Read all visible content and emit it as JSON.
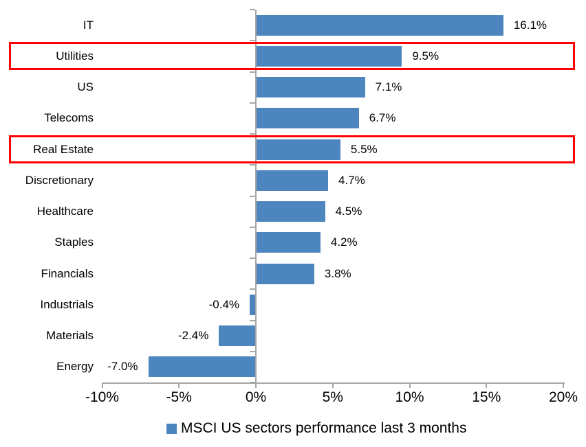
{
  "chart_data": {
    "type": "bar",
    "orientation": "horizontal",
    "title": "",
    "xlabel": "",
    "ylabel": "",
    "categories": [
      "IT",
      "Utilities",
      "US",
      "Telecoms",
      "Real Estate",
      "Discretionary",
      "Healthcare",
      "Staples",
      "Financials",
      "Industrials",
      "Materials",
      "Energy"
    ],
    "values": [
      16.1,
      9.5,
      7.1,
      6.7,
      5.5,
      4.7,
      4.5,
      4.2,
      3.8,
      -0.4,
      -2.4,
      -7.0
    ],
    "value_labels": [
      "16.1%",
      "9.5%",
      "7.1%",
      "6.7%",
      "5.5%",
      "4.7%",
      "4.5%",
      "4.2%",
      "3.8%",
      "-0.4%",
      "-2.4%",
      "-7.0%"
    ],
    "x_axis": {
      "min": -10,
      "max": 20,
      "unit": "%",
      "tick_values": [
        -10,
        -5,
        0,
        5,
        10,
        15,
        20
      ],
      "tick_labels": [
        "-10%",
        "-5%",
        "0%",
        "5%",
        "10%",
        "15%",
        "20%"
      ]
    },
    "grid": false,
    "legend_position": "bottom",
    "legend": "MSCI US sectors performance last 3 months",
    "highlighted_categories": [
      "Utilities",
      "Real Estate"
    ],
    "colors": {
      "bar": "#4D86BE",
      "highlight_box": "#FF0000",
      "axis": "#A6A6A6",
      "text": "#000000",
      "background": "#FFFFFF"
    }
  }
}
